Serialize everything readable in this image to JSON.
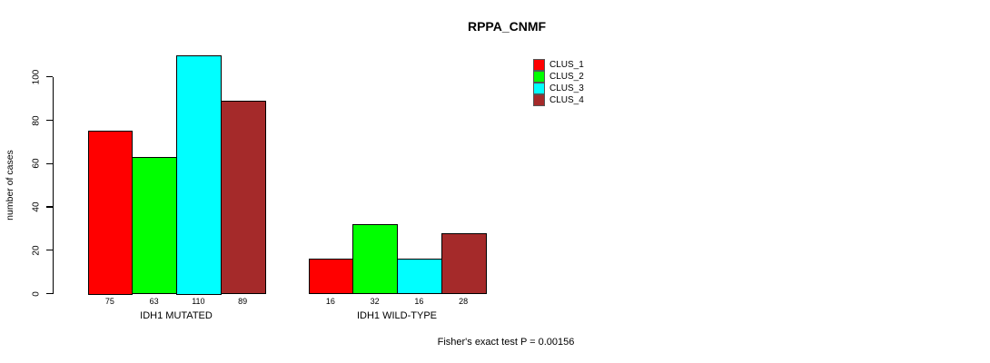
{
  "chart_data": {
    "type": "bar",
    "title": "RPPA_CNMF",
    "ylabel": "number of cases",
    "xlabel": "",
    "categories": [
      "IDH1 MUTATED",
      "IDH1 WILD-TYPE"
    ],
    "series": [
      {
        "name": "CLUS_1",
        "color": "#FF0000",
        "values": [
          75,
          16
        ]
      },
      {
        "name": "CLUS_2",
        "color": "#00FF00",
        "values": [
          63,
          32
        ]
      },
      {
        "name": "CLUS_3",
        "color": "#00FFFF",
        "values": [
          110,
          16
        ]
      },
      {
        "name": "CLUS_4",
        "color": "#A52A2A",
        "values": [
          89,
          28
        ]
      }
    ],
    "yticks": [
      0,
      20,
      40,
      60,
      80,
      100
    ],
    "ylim": [
      0,
      110
    ],
    "grid": false,
    "legend_position": "top-right",
    "bar_value_labels": true,
    "annotation": "Fisher's exact test P = 0.00156",
    "axis_color": "#000000",
    "bar_border_color": "#000000"
  }
}
